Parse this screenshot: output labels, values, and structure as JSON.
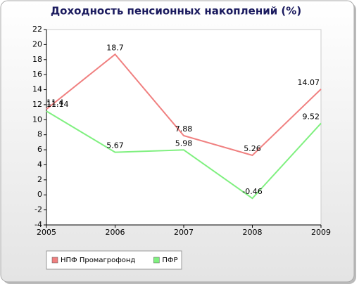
{
  "chart_data": {
    "type": "line",
    "title": "Доходность пенсионных накоплений (%)",
    "x": [
      2005,
      2006,
      2007,
      2008,
      2009
    ],
    "xlim": [
      2005,
      2009
    ],
    "xticks": [
      2005,
      2006,
      2007,
      2008,
      2009
    ],
    "ylim": [
      -4,
      22
    ],
    "yticks": [
      -4,
      -2,
      0,
      2,
      4,
      6,
      8,
      10,
      12,
      14,
      16,
      18,
      20,
      22
    ],
    "grid": false,
    "legend": "bottom-left",
    "series": [
      {
        "name": "НПФ Промагрофонд",
        "color": "#f08080",
        "values": [
          11.4,
          18.7,
          7.88,
          5.26,
          14.07
        ]
      },
      {
        "name": "ПФР",
        "color": "#80f080",
        "values": [
          11.14,
          5.67,
          5.98,
          -0.46,
          9.52
        ]
      }
    ]
  }
}
